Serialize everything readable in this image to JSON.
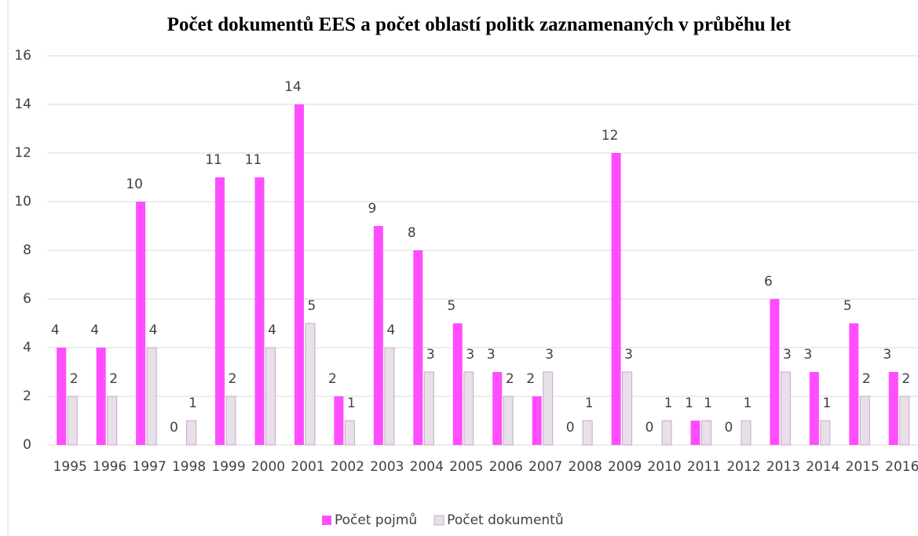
{
  "chart_data": {
    "type": "bar",
    "title": "Počet dokumentů EES a počet oblastí politk zaznamenaných v průběhu let",
    "categories": [
      "1995",
      "1996",
      "1997",
      "1998",
      "1999",
      "2000",
      "2001",
      "2002",
      "2003",
      "2004",
      "2005",
      "2006",
      "2007",
      "2008",
      "2009",
      "2010",
      "2011",
      "2012",
      "2013",
      "2014",
      "2015",
      "2016"
    ],
    "series": [
      {
        "name": "Počet pojmů",
        "color": "#ff4dff",
        "values": [
          4,
          4,
          10,
          0,
          11,
          11,
          14,
          2,
          9,
          8,
          5,
          3,
          2,
          0,
          12,
          0,
          1,
          0,
          6,
          3,
          5,
          3
        ]
      },
      {
        "name": "Počet dokumentů",
        "color": "#e8e0e8",
        "values": [
          2,
          2,
          4,
          1,
          2,
          4,
          5,
          1,
          4,
          3,
          3,
          2,
          3,
          1,
          3,
          1,
          1,
          1,
          3,
          1,
          2,
          2
        ]
      }
    ],
    "ylim": [
      0,
      16
    ],
    "yticks": [
      0,
      2,
      4,
      6,
      8,
      10,
      12,
      14,
      16
    ],
    "grid": true,
    "legend": "bottom"
  }
}
